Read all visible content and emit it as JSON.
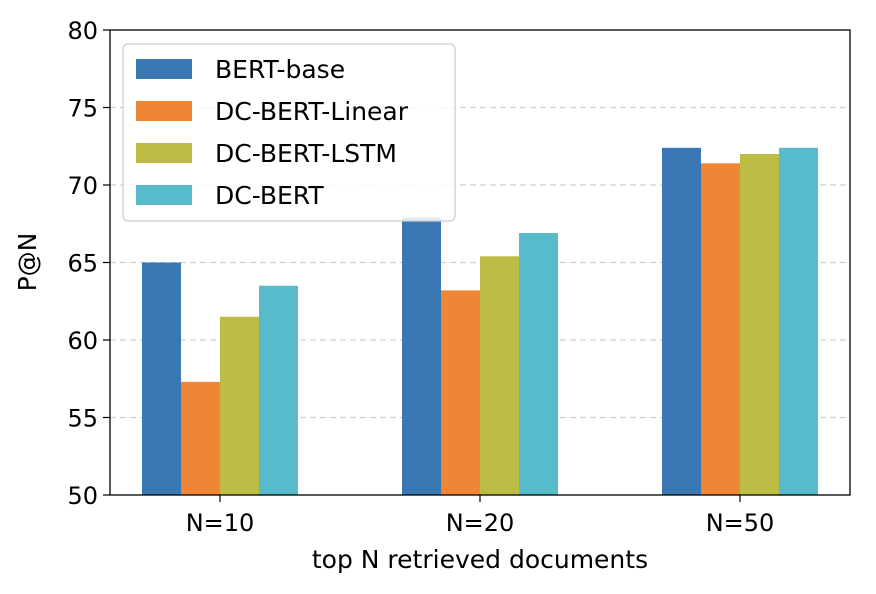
{
  "chart_data": {
    "type": "bar",
    "title": "",
    "xlabel": "top N retrieved documents",
    "ylabel": "P@N",
    "categories": [
      "N=10",
      "N=20",
      "N=50"
    ],
    "ylim": [
      50,
      80
    ],
    "yticks": [
      "50",
      "55",
      "60",
      "65",
      "70",
      "75",
      "80"
    ],
    "grid": "horizontal dashed",
    "legend_position": "top-left",
    "series": [
      {
        "name": "BERT-base",
        "color": "#3a78b4",
        "values": [
          65.0,
          67.9,
          72.4
        ]
      },
      {
        "name": "DC-BERT-Linear",
        "color": "#ef8636",
        "values": [
          57.3,
          63.2,
          71.4
        ]
      },
      {
        "name": "DC-BERT-LSTM",
        "color": "#bdbc45",
        "values": [
          61.5,
          65.4,
          72.0
        ]
      },
      {
        "name": "DC-BERT",
        "color": "#57bbcc",
        "values": [
          63.5,
          66.9,
          72.4
        ]
      }
    ]
  }
}
